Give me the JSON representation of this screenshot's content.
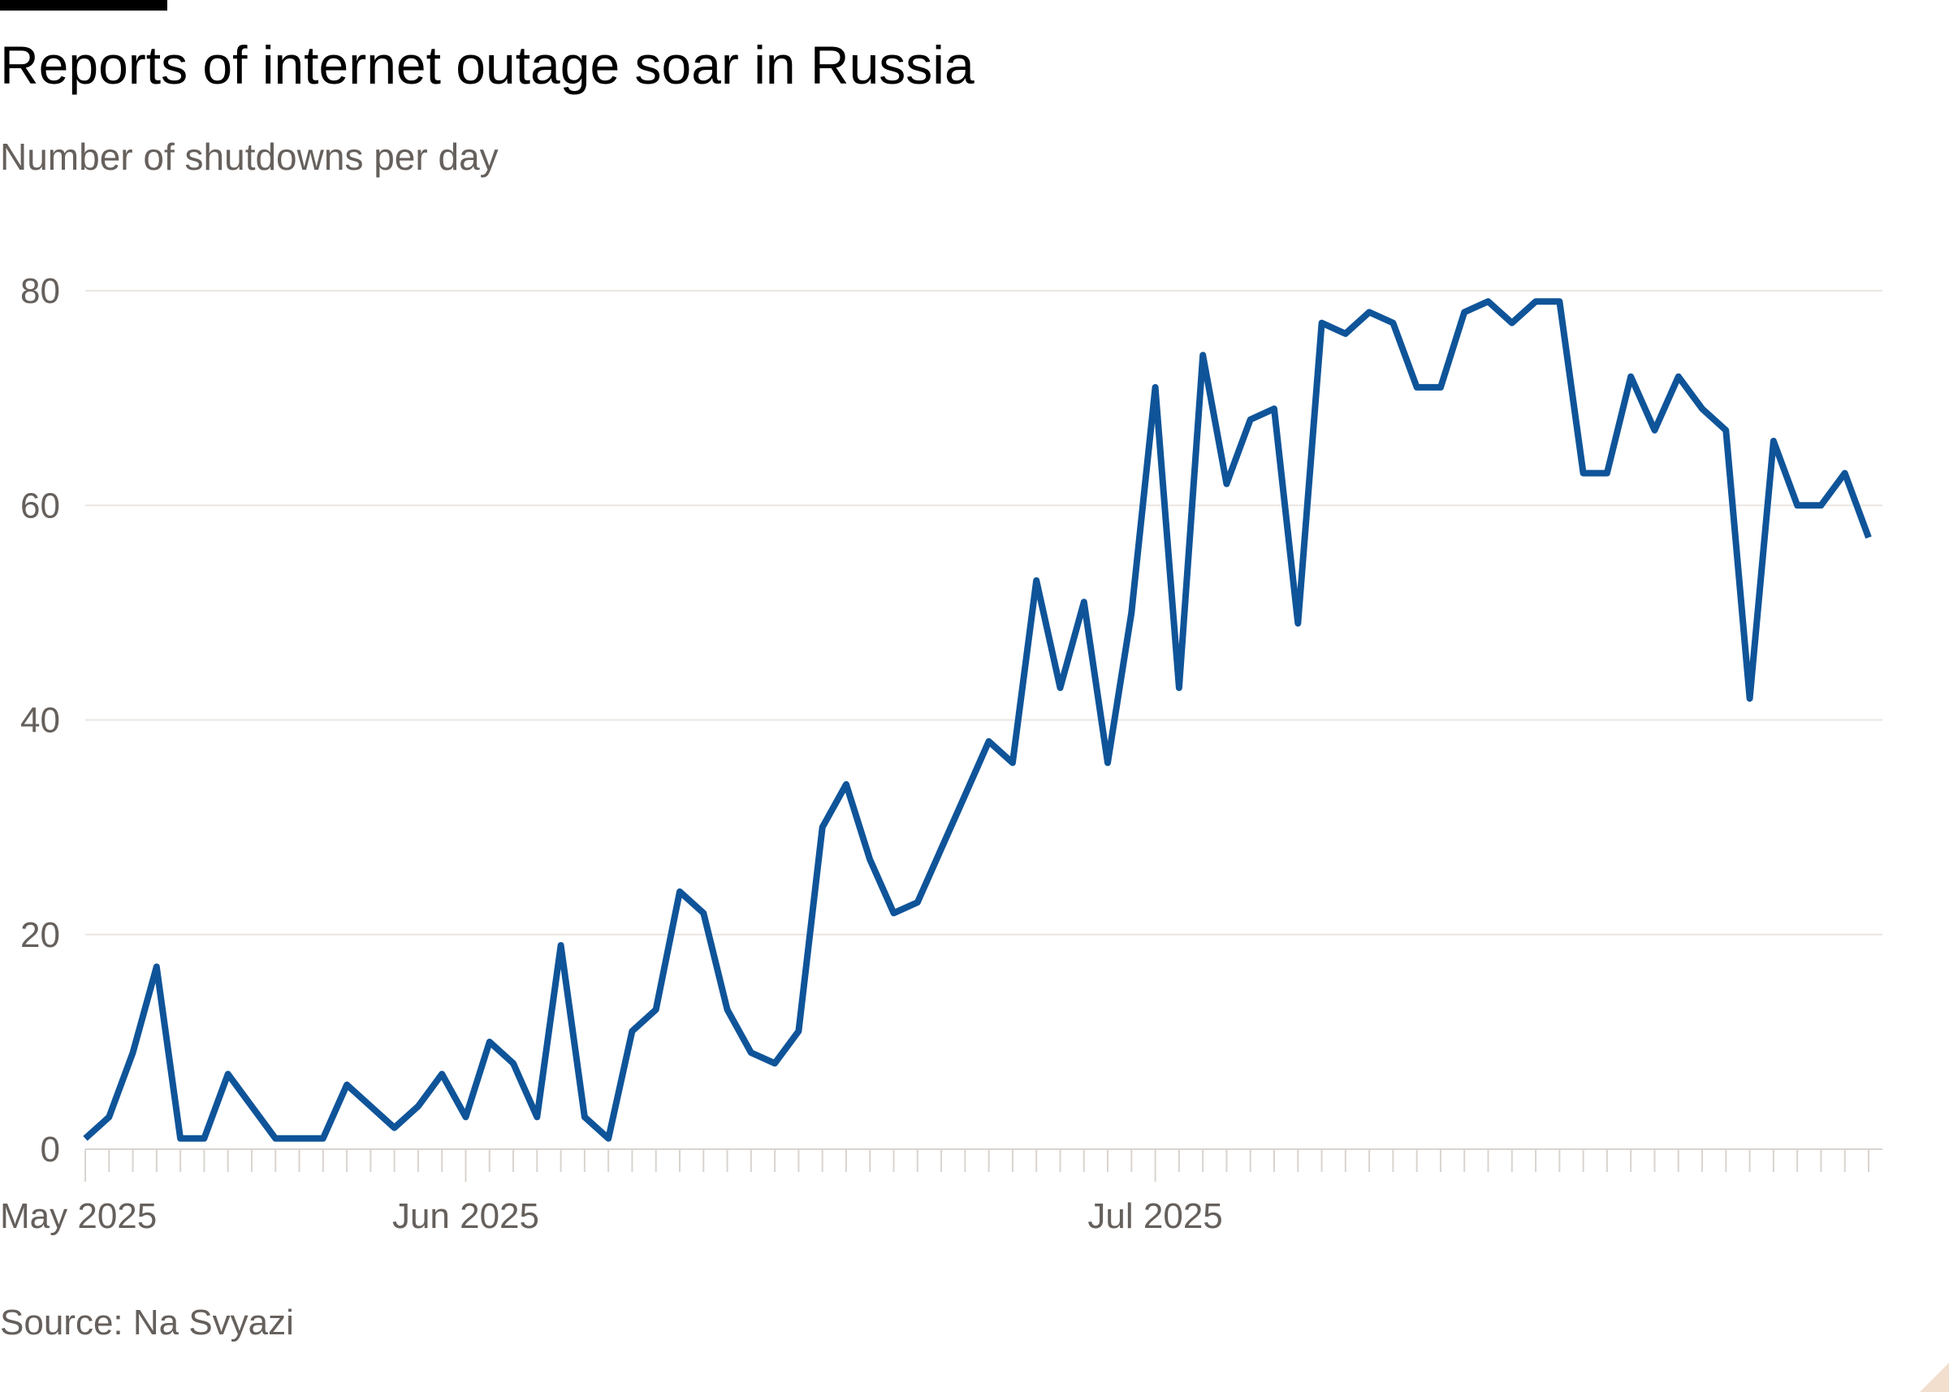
{
  "header": {
    "title": "Reports of internet outage soar in Russia",
    "subtitle": "Number of shutdowns per day"
  },
  "footer": {
    "source": "Source: Na Svyazi"
  },
  "colors": {
    "line": "#0f5499",
    "grid": "#ebe6e2",
    "axis_text": "#66605c",
    "tick": "#d9d4cf"
  },
  "chart_data": {
    "type": "line",
    "title": "Reports of internet outage soar in Russia",
    "subtitle": "Number of shutdowns per day",
    "xlabel": "",
    "ylabel": "",
    "ylim": [
      0,
      80
    ],
    "yticks": [
      "0",
      "20",
      "40",
      "60",
      "80"
    ],
    "grid": true,
    "x_tick_labels": [
      {
        "index": 0,
        "label": "May 2025"
      },
      {
        "index": 16,
        "label": "Jun 2025"
      },
      {
        "index": 45,
        "label": "Jul 2025"
      }
    ],
    "series": [
      {
        "name": "Shutdowns per day",
        "values": [
          1,
          3,
          9,
          17,
          1,
          1,
          7,
          4,
          1,
          1,
          1,
          6,
          4,
          2,
          4,
          7,
          3,
          10,
          8,
          3,
          19,
          3,
          1,
          11,
          13,
          24,
          22,
          13,
          9,
          8,
          11,
          30,
          34,
          27,
          22,
          23,
          28,
          33,
          38,
          36,
          53,
          43,
          51,
          36,
          50,
          71,
          43,
          74,
          62,
          68,
          69,
          49,
          77,
          76,
          78,
          77,
          71,
          71,
          78,
          79,
          77,
          79,
          79,
          63,
          63,
          72,
          67,
          72,
          69,
          67,
          42,
          66,
          60,
          60,
          63,
          57
        ]
      }
    ]
  }
}
